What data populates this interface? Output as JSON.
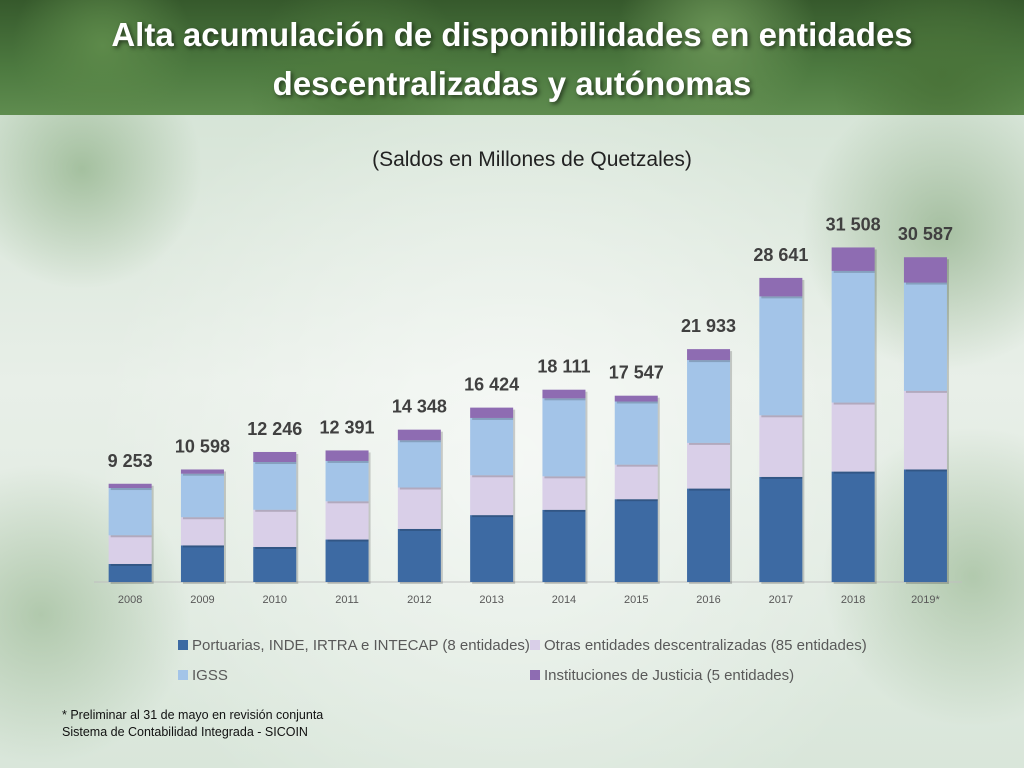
{
  "title": "Alta acumulación de disponibilidades en entidades descentralizadas y autónomas",
  "subtitle": "(Saldos en Millones de Quetzales)",
  "footnote": {
    "line1": "* Preliminar al 31 de mayo en revisión conjunta",
    "line2": "Sistema de Contabilidad Integrada - SICOIN"
  },
  "chart_data": {
    "type": "bar",
    "stacked": true,
    "categories": [
      "2008",
      "2009",
      "2010",
      "2011",
      "2012",
      "2013",
      "2014",
      "2015",
      "2016",
      "2017",
      "2018",
      "2019*"
    ],
    "totals": [
      9253,
      10598,
      12246,
      12391,
      14348,
      16424,
      18111,
      17547,
      21933,
      28641,
      31508,
      30587
    ],
    "total_labels": [
      "9 253",
      "10 598",
      "12 246",
      "12 391",
      "14 348",
      "16 424",
      "18 111",
      "17 547",
      "21 933",
      "28 641",
      "31 508",
      "30 587"
    ],
    "series": [
      {
        "name": "Portuarias, INDE, IRTRA e INTECAP (8 entidades)",
        "color": "#3d6aa3",
        "values": [
          1700,
          3450,
          3300,
          4000,
          5000,
          6300,
          6800,
          7800,
          8800,
          9900,
          10400,
          10600
        ]
      },
      {
        "name": "Otras entidades descentralizadas (85 entidades)",
        "color": "#d9cfe8",
        "values": [
          2700,
          2650,
          3500,
          3600,
          3900,
          3750,
          3150,
          3250,
          4300,
          5800,
          6500,
          7400
        ]
      },
      {
        "name": "IGSS",
        "color": "#a3c4e8",
        "values": [
          4450,
          4100,
          4500,
          3800,
          4450,
          5400,
          7350,
          5950,
          7800,
          11200,
          12400,
          10200
        ]
      },
      {
        "name": "Instituciones de Justicia  (5 entidades)",
        "color": "#8e6cb2",
        "values": [
          403,
          398,
          946,
          991,
          998,
          974,
          811,
          547,
          1033,
          1741,
          2208,
          2387
        ]
      }
    ],
    "ylim": [
      0,
      34000
    ],
    "grid": false,
    "legend_position": "bottom"
  }
}
